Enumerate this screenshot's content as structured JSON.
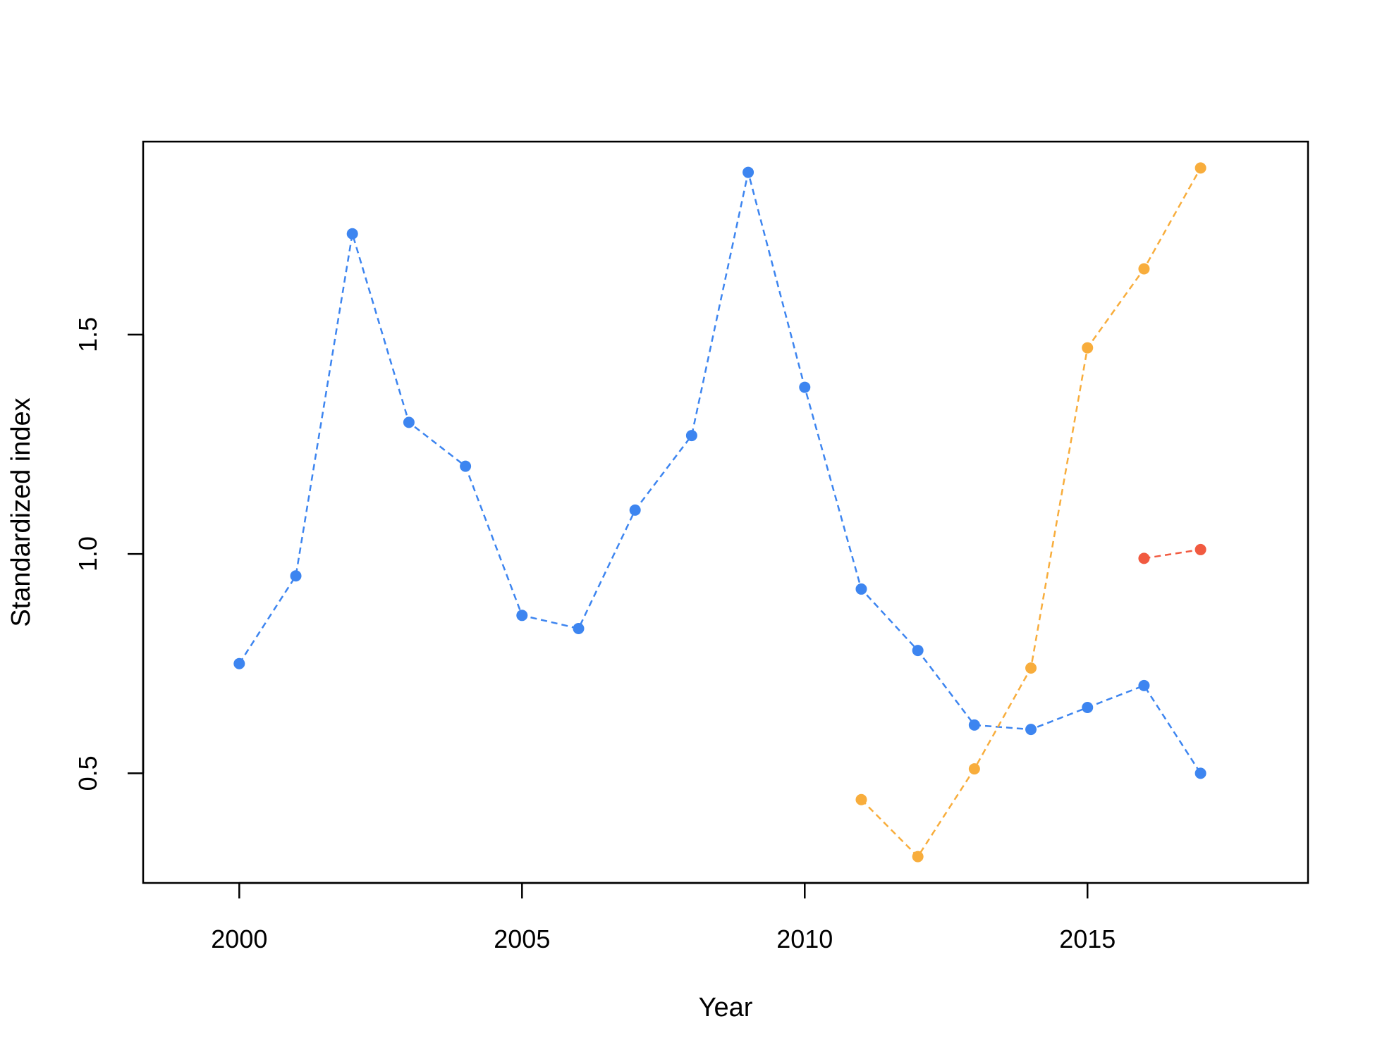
{
  "chart_data": {
    "type": "line",
    "title": "",
    "xlabel": "Year",
    "ylabel": "Standardized index",
    "xlim": [
      1998.3,
      2018.9
    ],
    "ylim": [
      0.25,
      1.94
    ],
    "xticks": [
      2000,
      2005,
      2010,
      2015
    ],
    "yticks": [
      0.5,
      1.0,
      1.5
    ],
    "xtick_labels": [
      "2000",
      "2005",
      "2010",
      "2015"
    ],
    "ytick_labels": [
      "0.5",
      "1.0",
      "1.5"
    ],
    "grid": false,
    "legend": "none",
    "series": [
      {
        "color": "#3d85f0",
        "x": [
          2000,
          2001,
          2002,
          2003,
          2004,
          2005,
          2006,
          2007,
          2008,
          2009,
          2010,
          2011,
          2012,
          2013,
          2014,
          2015,
          2016,
          2017
        ],
        "y": [
          0.75,
          0.95,
          1.73,
          1.3,
          1.2,
          0.86,
          0.83,
          1.1,
          1.27,
          1.87,
          1.38,
          0.92,
          0.78,
          0.61,
          0.6,
          0.65,
          0.7,
          0.5
        ]
      },
      {
        "color": "#f8ad3c",
        "x": [
          2011,
          2012,
          2013,
          2014,
          2015,
          2016,
          2017
        ],
        "y": [
          0.44,
          0.31,
          0.51,
          0.74,
          1.47,
          1.65,
          1.88
        ]
      },
      {
        "color": "#f15a40",
        "x": [
          2016,
          2017
        ],
        "y": [
          0.99,
          1.01
        ]
      }
    ]
  }
}
